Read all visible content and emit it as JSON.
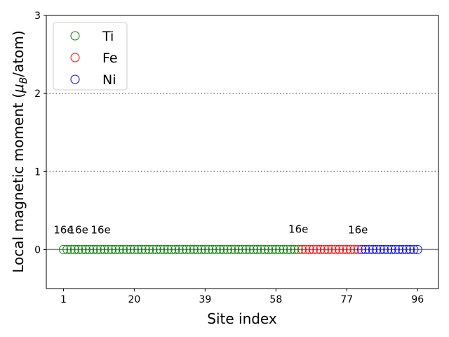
{
  "chart_data": {
    "type": "scatter",
    "xlabel": "Site index",
    "ylabel": "Local magnetic moment (μ_B/atom)",
    "ylabel_main": "Local magnetic moment (",
    "ylabel_mu": "μ",
    "ylabel_sub": "B",
    "ylabel_tail": "/atom)",
    "xlim": [
      -3.6,
      101.6
    ],
    "ylim": [
      -0.5,
      3
    ],
    "x_ticks": [
      1,
      20,
      39,
      58,
      77,
      96
    ],
    "x_tick_labels": [
      "1",
      "20",
      "39",
      "58",
      "77",
      "96"
    ],
    "y_ticks": [
      0,
      1,
      2,
      3
    ],
    "y_tick_labels": [
      "0",
      "1",
      "2",
      "3"
    ],
    "reference_lines": [
      {
        "y": 0,
        "style": "solid",
        "color": "#808080"
      },
      {
        "y": 1,
        "style": "dotted",
        "color": "#808080"
      },
      {
        "y": 2,
        "style": "dotted",
        "color": "#808080"
      }
    ],
    "legend_position": "top-left",
    "series": [
      {
        "name": "Ti",
        "color": "#008000",
        "x_start": 1,
        "x_end": 64,
        "y": 0
      },
      {
        "name": "Fe",
        "color": "#ff0000",
        "x_start": 65,
        "x_end": 80,
        "y": 0
      },
      {
        "name": "Ni",
        "color": "#0000ff",
        "x_start": 81,
        "x_end": 96,
        "y": 0
      }
    ],
    "annotations": [
      {
        "text": "16e",
        "x": 1,
        "y": 0.25
      },
      {
        "text": "16e",
        "x": 5,
        "y": 0.25
      },
      {
        "text": "16e",
        "x": 11,
        "y": 0.25
      },
      {
        "text": "16e",
        "x": 64,
        "y": 0.26
      },
      {
        "text": "16e",
        "x": 80,
        "y": 0.25
      }
    ]
  }
}
